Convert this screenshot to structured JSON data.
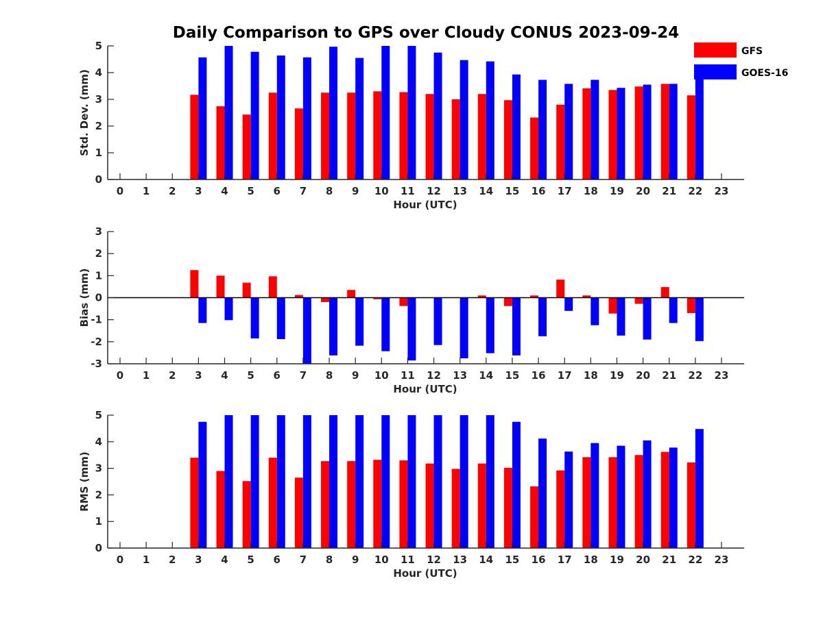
{
  "chart_data": {
    "title": "Daily Comparison to GPS over Cloudy CONUS 2023-09-24",
    "legend": {
      "placement": "top-right",
      "entries": [
        {
          "name": "GFS",
          "color": "#ff0000"
        },
        {
          "name": "GOES-16",
          "color": "#0000ff"
        }
      ]
    },
    "panels": [
      {
        "id": "std",
        "type": "bar",
        "ylabel": "Std. Dev. (mm)",
        "xlabel": "Hour (UTC)",
        "ylim": [
          0,
          5
        ],
        "yticks": [
          0,
          1,
          2,
          3,
          4,
          5
        ],
        "x": [
          "0",
          "1",
          "2",
          "3",
          "4",
          "5",
          "6",
          "7",
          "8",
          "9",
          "10",
          "11",
          "12",
          "13",
          "14",
          "15",
          "16",
          "17",
          "18",
          "19",
          "20",
          "21",
          "22",
          "23"
        ],
        "series": [
          {
            "name": "GFS",
            "color": "#ff0000",
            "values": [
              null,
              null,
              null,
              3.17,
              2.74,
              2.43,
              3.25,
              2.66,
              3.25,
              3.25,
              3.3,
              3.27,
              3.2,
              3.0,
              3.2,
              2.97,
              2.32,
              2.8,
              3.41,
              3.35,
              3.48,
              3.58,
              3.15,
              null
            ]
          },
          {
            "name": "GOES-16",
            "color": "#0000ff",
            "values": [
              null,
              null,
              null,
              4.57,
              5.0,
              4.78,
              4.64,
              4.57,
              4.97,
              4.55,
              5.0,
              5.0,
              4.75,
              4.47,
              4.42,
              3.93,
              3.73,
              3.58,
              3.73,
              3.43,
              3.55,
              3.58,
              4.02,
              null
            ]
          }
        ]
      },
      {
        "id": "bias",
        "type": "bar",
        "ylabel": "Bias (mm)",
        "xlabel": "Hour (UTC)",
        "ylim": [
          -3,
          3
        ],
        "yticks": [
          -3,
          -2,
          -1,
          0,
          1,
          2,
          3
        ],
        "zero_line": true,
        "x": [
          "0",
          "1",
          "2",
          "3",
          "4",
          "5",
          "6",
          "7",
          "8",
          "9",
          "10",
          "11",
          "12",
          "13",
          "14",
          "15",
          "16",
          "17",
          "18",
          "19",
          "20",
          "21",
          "22",
          "23"
        ],
        "series": [
          {
            "name": "GFS",
            "color": "#ff0000",
            "values": [
              null,
              null,
              null,
              1.25,
              1.0,
              0.68,
              0.97,
              0.12,
              -0.2,
              0.35,
              -0.07,
              -0.38,
              0.0,
              0.0,
              0.1,
              -0.38,
              0.1,
              0.82,
              0.1,
              -0.72,
              -0.28,
              0.48,
              -0.7,
              null
            ]
          },
          {
            "name": "GOES-16",
            "color": "#0000ff",
            "values": [
              null,
              null,
              null,
              -1.15,
              -1.02,
              -1.85,
              -1.88,
              -3.0,
              -2.62,
              -2.18,
              -2.43,
              -2.85,
              -2.15,
              -2.75,
              -2.52,
              -2.62,
              -1.75,
              -0.6,
              -1.25,
              -1.72,
              -1.9,
              -1.15,
              -1.97,
              null
            ]
          }
        ]
      },
      {
        "id": "rms",
        "type": "bar",
        "ylabel": "RMS (mm)",
        "xlabel": "Hour (UTC)",
        "ylim": [
          0,
          5
        ],
        "yticks": [
          0,
          1,
          2,
          3,
          4,
          5
        ],
        "x": [
          "0",
          "1",
          "2",
          "3",
          "4",
          "5",
          "6",
          "7",
          "8",
          "9",
          "10",
          "11",
          "12",
          "13",
          "14",
          "15",
          "16",
          "17",
          "18",
          "19",
          "20",
          "21",
          "22",
          "23"
        ],
        "series": [
          {
            "name": "GFS",
            "color": "#ff0000",
            "values": [
              null,
              null,
              null,
              3.4,
              2.9,
              2.52,
              3.4,
              2.65,
              3.27,
              3.27,
              3.32,
              3.3,
              3.18,
              2.98,
              3.18,
              3.02,
              2.32,
              2.92,
              3.42,
              3.42,
              3.5,
              3.62,
              3.22,
              null
            ]
          },
          {
            "name": "GOES-16",
            "color": "#0000ff",
            "values": [
              null,
              null,
              null,
              4.75,
              5.0,
              5.0,
              5.0,
              5.0,
              5.0,
              5.0,
              5.0,
              5.0,
              5.0,
              5.0,
              5.0,
              4.75,
              4.12,
              3.63,
              3.95,
              3.85,
              4.05,
              3.78,
              4.48,
              null
            ]
          }
        ]
      }
    ]
  }
}
